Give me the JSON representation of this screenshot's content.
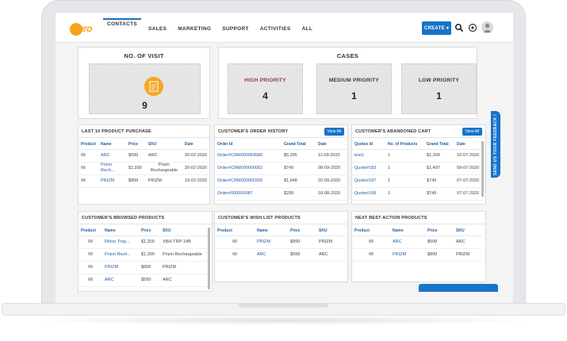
{
  "header": {
    "logo_text": "auro",
    "nav": [
      "CONTACTS",
      "SALES",
      "MARKETING",
      "SUPPORT",
      "ACTIVITIES",
      "ALL"
    ],
    "create_label": "CREATE ▾",
    "accent_color": "#1873c9"
  },
  "visits": {
    "title": "NO. OF VISIT",
    "value": "9",
    "icon": "report-icon"
  },
  "cases": {
    "title": "CASES",
    "items": [
      {
        "label": "HIGH PRIORITY",
        "value": "4"
      },
      {
        "label": "MEDIUM PRIORITY",
        "value": "1"
      },
      {
        "label": "LOW PRIORITY",
        "value": "1"
      }
    ]
  },
  "last_purchase": {
    "title": "LAST 10 PRODUCT PURCHASE",
    "columns": [
      "Product",
      "Name",
      "Price",
      "SKU",
      "Date"
    ],
    "rows": [
      [
        "ARC",
        "$599",
        "ARC",
        "20-02-2020"
      ],
      [
        "Prizm Rech...",
        "$1,399",
        "Prizm Rechargeable",
        "20-02-2020"
      ],
      [
        "PRIZM",
        "$899",
        "PRIZM",
        "19-02-2020"
      ]
    ]
  },
  "order_history": {
    "title": "CUSTOMER'S ORDER HISTORY",
    "view_all": "View All",
    "columns": [
      "Order Id",
      "Grand Total",
      "Date"
    ],
    "rows": [
      [
        "Order#CRM000054586",
        "$5,395",
        "11-09-2020"
      ],
      [
        "Order#CRM000000082",
        "$749",
        "08-09-2020"
      ],
      [
        "Order#CRM000000266",
        "$1,648",
        "02-09-2020"
      ],
      [
        "Order#000000087",
        "$299",
        "18-08-2020"
      ]
    ]
  },
  "abandoned_cart": {
    "title": "CUSTOMER'S ABANDONED CART",
    "view_all": "View All",
    "columns": [
      "Quotes Id",
      "No. of Products",
      "Grand Total",
      "Date"
    ],
    "rows": [
      [
        "test1",
        "1",
        "$1,399",
        "10-07-2020"
      ],
      [
        "Quote#183",
        "1",
        "$1,497",
        "09-07-2020"
      ],
      [
        "Quote#187",
        "1",
        "$749",
        "07-07-2020"
      ],
      [
        "Quote#168",
        "1",
        "$749",
        "07-07-2020"
      ]
    ]
  },
  "browsed_products": {
    "title": "CUSTOMER'S BROWSED PRODUCTS",
    "columns": [
      "Product",
      "Name",
      "Price",
      "SKU"
    ],
    "rows": [
      [
        "Rhino Trop...",
        "$1,300",
        "XBH-TRP-14B"
      ],
      [
        "Prizm Rech...",
        "$1,399",
        "Prizm Rechargeable"
      ],
      [
        "PRIZM",
        "$899",
        "PRIZM"
      ],
      [
        "ARC",
        "$599",
        "ARC"
      ]
    ]
  },
  "wish_list": {
    "title": "CUSTOMER'S WISH LIST PRODUCTS",
    "columns": [
      "Product",
      "Name",
      "Price",
      "SKU"
    ],
    "rows": [
      [
        "PRIZM",
        "$899",
        "PRIZM"
      ],
      [
        "ARC",
        "$599",
        "ARC"
      ]
    ]
  },
  "best_action": {
    "title": "NEXT BEST ACTION PRODUCTS",
    "columns": [
      "Product",
      "Name",
      "Price",
      "SKU"
    ],
    "rows": [
      [
        "ARC",
        "$599",
        "ARC"
      ],
      [
        "PRIZM",
        "$899",
        "PRIZM"
      ]
    ]
  },
  "feedback_label": "SEND US YOUR FEEDBACK !"
}
